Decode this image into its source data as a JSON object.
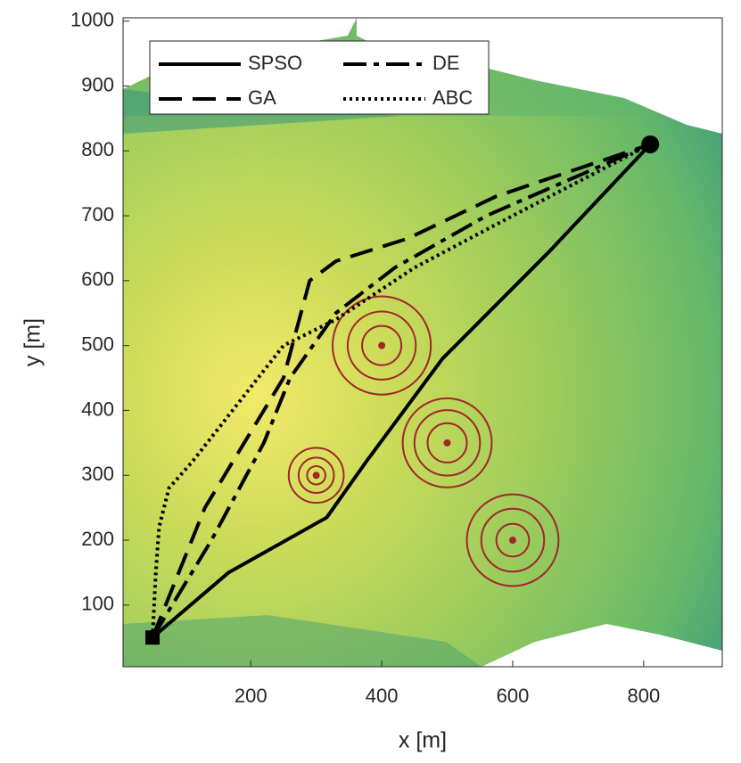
{
  "chart_data": {
    "type": "path",
    "xlabel": "x [m]",
    "ylabel": "y [m]",
    "xlim": [
      5,
      920
    ],
    "ylim": [
      5,
      1005
    ],
    "xticks": [
      200,
      400,
      600,
      800
    ],
    "yticks": [
      100,
      200,
      300,
      400,
      500,
      600,
      700,
      800,
      900,
      1000
    ],
    "legend": "upper left",
    "series": [
      {
        "name": "SPSO",
        "color": "#000000",
        "dash": "solid",
        "x": [
          50,
          166,
          316,
          377,
          493,
          656,
          810
        ],
        "values": [
          50,
          150,
          235,
          322,
          480,
          645,
          810
        ]
      },
      {
        "name": "GA",
        "color": "#000000",
        "dash": "dashed",
        "x": [
          50,
          130,
          250,
          290,
          330,
          440,
          575,
          810
        ],
        "values": [
          50,
          250,
          450,
          600,
          630,
          665,
          730,
          810
        ]
      },
      {
        "name": "DE",
        "color": "#000000",
        "dash": "dashdot",
        "x": [
          50,
          140,
          220,
          260,
          330,
          420,
          560,
          810
        ],
        "values": [
          50,
          200,
          350,
          450,
          550,
          620,
          700,
          810
        ]
      },
      {
        "name": "ABC",
        "color": "#000000",
        "dash": "dotted",
        "x": [
          50,
          55,
          60,
          75,
          110,
          250,
          330,
          450,
          600,
          810
        ],
        "values": [
          50,
          150,
          220,
          280,
          320,
          500,
          540,
          620,
          700,
          810
        ]
      }
    ],
    "start": {
      "x": 50,
      "y": 50
    },
    "goal": {
      "x": 810,
      "y": 810
    },
    "threat_color": "#a0262b",
    "threats": [
      {
        "x": 300,
        "y": 300,
        "radii": [
          14,
          27,
          42
        ]
      },
      {
        "x": 400,
        "y": 500,
        "radii": [
          30,
          52,
          75
        ]
      },
      {
        "x": 500,
        "y": 350,
        "radii": [
          30,
          50,
          68
        ]
      },
      {
        "x": 600,
        "y": 200,
        "radii": [
          25,
          48,
          70
        ]
      }
    ]
  }
}
